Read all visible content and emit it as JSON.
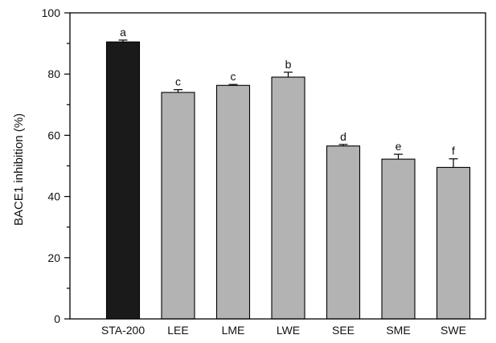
{
  "chart_data": {
    "type": "bar",
    "title": "",
    "xlabel": "",
    "ylabel": "BACE1 inhibition (%)",
    "ylim": [
      0,
      100
    ],
    "yticks": [
      0,
      20,
      40,
      60,
      80,
      100
    ],
    "ytick_labels": [
      "0",
      "20",
      "40",
      "60",
      "80",
      "100"
    ],
    "categories": [
      "STA-200",
      "LEE",
      "LME",
      "LWE",
      "SEE",
      "SME",
      "SWE"
    ],
    "values": [
      90.5,
      74.0,
      76.3,
      79.0,
      56.5,
      52.2,
      49.5
    ],
    "errors": [
      0.6,
      0.9,
      0.3,
      1.6,
      0.5,
      1.6,
      2.8
    ],
    "significance_letters": [
      "a",
      "c",
      "c",
      "b",
      "d",
      "e",
      "f"
    ],
    "bar_colors": [
      "#1a1a1a",
      "#b3b3b3",
      "#b3b3b3",
      "#b3b3b3",
      "#b3b3b3",
      "#b3b3b3",
      "#b3b3b3"
    ],
    "grid": false,
    "legend": "none"
  }
}
